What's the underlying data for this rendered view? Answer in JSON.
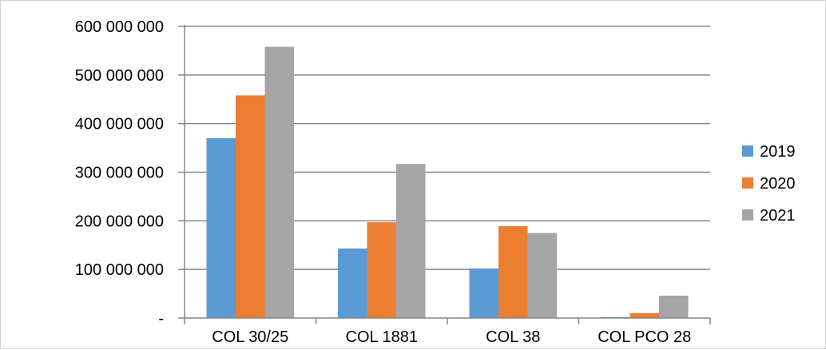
{
  "chart_data": {
    "type": "bar",
    "categories": [
      "COL 30/25",
      "COL 1881",
      "COL 38",
      "COL PCO 28"
    ],
    "series": [
      {
        "name": "2019",
        "color": "#5B9BD5",
        "values": [
          370000000,
          143000000,
          102000000,
          2000000
        ]
      },
      {
        "name": "2020",
        "color": "#ED7D31",
        "values": [
          458000000,
          197000000,
          189000000,
          10000000
        ]
      },
      {
        "name": "2021",
        "color": "#A5A5A5",
        "values": [
          558000000,
          317000000,
          175000000,
          46000000
        ]
      }
    ],
    "ylim": [
      0,
      600000000
    ],
    "y_ticks": [
      {
        "value": 0,
        "label": "-"
      },
      {
        "value": 100000000,
        "label": "100 000 000"
      },
      {
        "value": 200000000,
        "label": "200 000 000"
      },
      {
        "value": 300000000,
        "label": "300 000 000"
      },
      {
        "value": 400000000,
        "label": "400 000 000"
      },
      {
        "value": 500000000,
        "label": "500 000 000"
      },
      {
        "value": 600000000,
        "label": "600 000 000"
      }
    ],
    "grid": true,
    "legend_position": "right"
  }
}
